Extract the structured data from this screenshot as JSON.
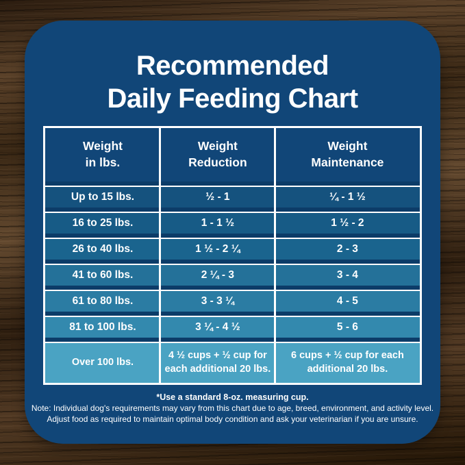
{
  "title": {
    "line1": "Recommended",
    "line2": "Daily Feeding Chart"
  },
  "table": {
    "headers": [
      {
        "line1": "Weight",
        "line2": "in lbs."
      },
      {
        "line1": "Weight",
        "line2": "Reduction"
      },
      {
        "line1": "Weight",
        "line2": "Maintenance"
      }
    ]
  },
  "chart_data": {
    "type": "table",
    "title": "Recommended Daily Feeding Chart",
    "columns": [
      "Weight in lbs.",
      "Weight Reduction",
      "Weight Maintenance"
    ],
    "rows": [
      [
        "Up to 15 lbs.",
        "½ - 1",
        "¼ - 1 ½"
      ],
      [
        "16 to 25 lbs.",
        "1 - 1 ½",
        "1 ½ - 2"
      ],
      [
        "26 to 40 lbs.",
        "1 ½ - 2 ¼",
        "2 - 3"
      ],
      [
        "41 to 60 lbs.",
        "2 ¼ - 3",
        "3 - 4"
      ],
      [
        "61 to 80 lbs.",
        "3 - 3 ¼",
        "4 - 5"
      ],
      [
        "81 to 100 lbs.",
        "3 ¼ - 4 ½",
        "5 - 6"
      ],
      [
        "Over 100 lbs.",
        "4 ½ cups + ½ cup for each additional 20 lbs.",
        "6 cups + ½ cup for each additional 20 lbs."
      ]
    ],
    "footnote": "*Use a standard 8-oz. measuring cup."
  },
  "footer": {
    "measuring_note": "*Use a standard 8-oz. measuring cup.",
    "note_line1": "Note: Individual dog's requirements may vary from this chart due to age, breed, environment, and activity level.",
    "note_line2": "Adjust food as required to maintain optimal body condition and ask your veterinarian if you are unsure."
  },
  "colors": {
    "card_bg": "#114678",
    "table_gap_bg": "#0c3c68",
    "header_bg": "#114678",
    "border_white": "#ffffff",
    "row_colors": [
      "#15527e",
      "#175b86",
      "#1a648e",
      "#247199",
      "#2b7ca3",
      "#3389ae",
      "#4aa3c3"
    ]
  }
}
